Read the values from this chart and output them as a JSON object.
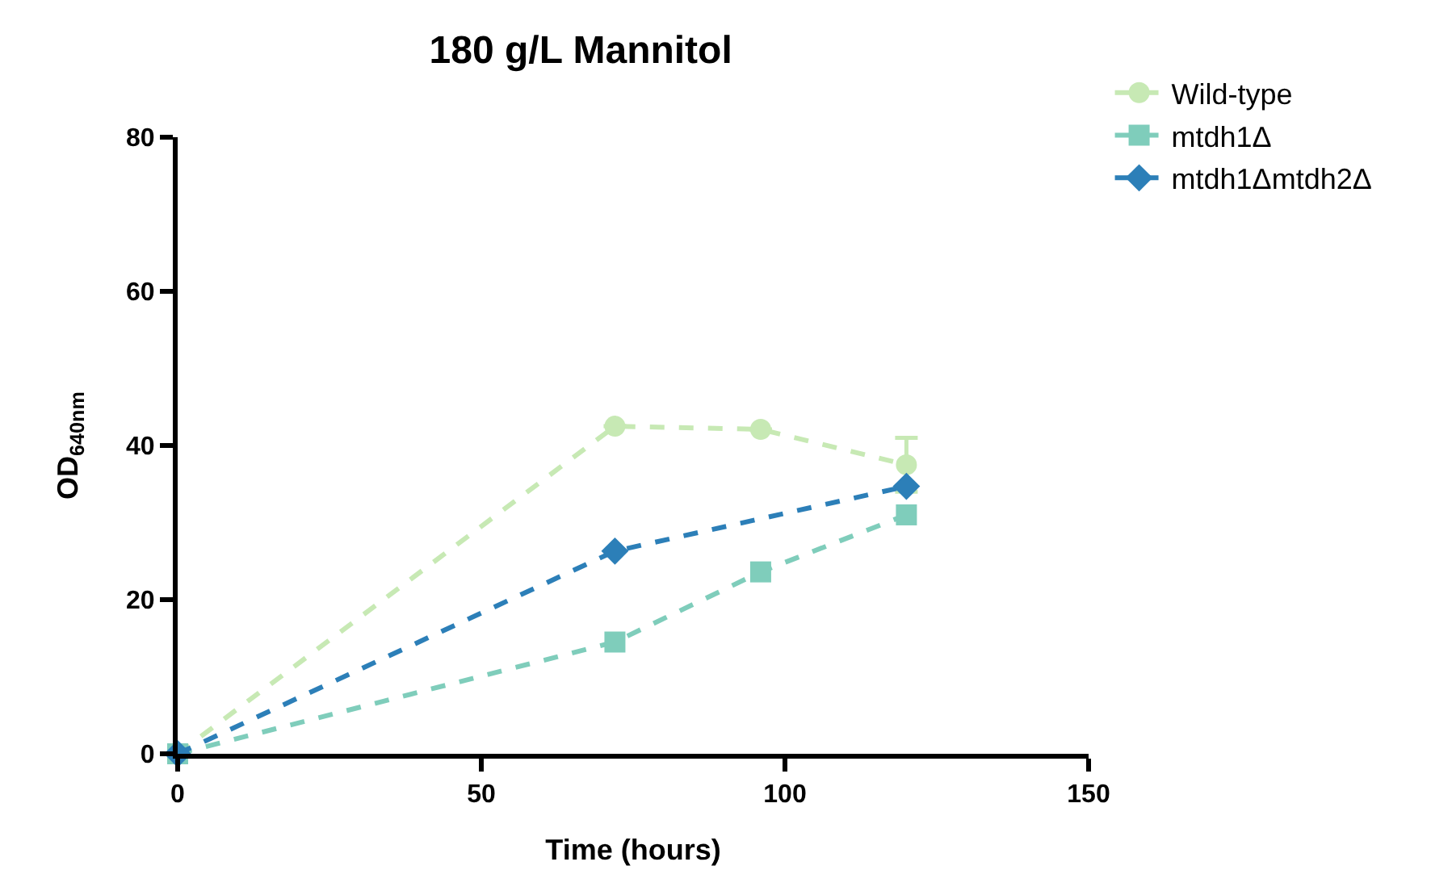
{
  "chart_data": {
    "type": "line",
    "title": "180 g/L Mannitol",
    "xlabel": "Time (hours)",
    "ylabel": "OD$_{640nm}$",
    "x": [
      0,
      72,
      96,
      120
    ],
    "series": [
      {
        "name": "Wild-type",
        "color": "#c7e9b4",
        "marker": "circle",
        "values": [
          0,
          42.5,
          42.1,
          37.5
        ],
        "errors": [
          null,
          null,
          null,
          3.5
        ]
      },
      {
        "name": "mtdh1Δ",
        "color": "#7fcdbb",
        "marker": "square",
        "values": [
          0,
          14.5,
          23.6,
          31
        ]
      },
      {
        "name": "mtdh1Δmtdh2Δ",
        "color": "#2c7fb8",
        "marker": "diamond",
        "values": [
          0,
          26.3,
          null,
          34.7
        ]
      }
    ],
    "xlim": [
      0,
      150
    ],
    "xticks": [
      0,
      50,
      100,
      150
    ],
    "ylim": [
      0,
      80
    ],
    "yticks": [
      0,
      20,
      40,
      60,
      80
    ],
    "grid": false,
    "legend": "top right",
    "line_style": "dashed"
  }
}
